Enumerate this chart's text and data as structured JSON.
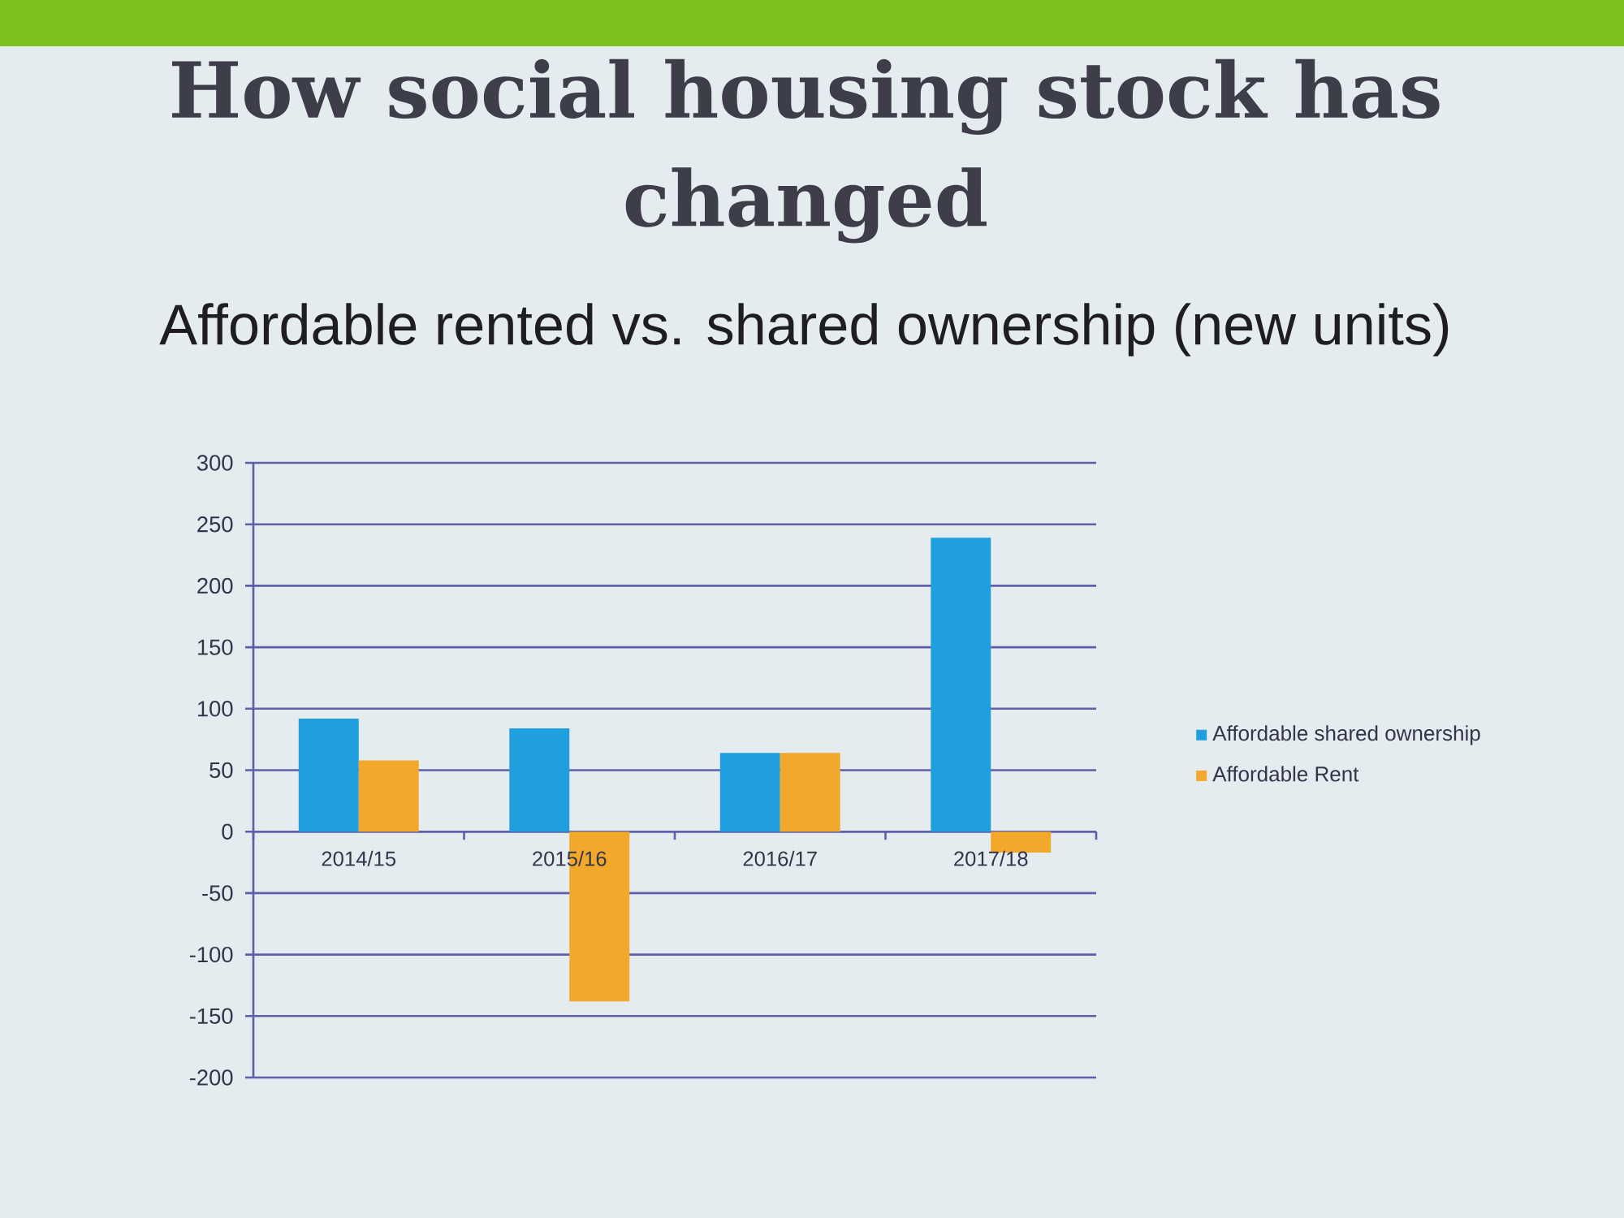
{
  "chart_data": {
    "type": "bar",
    "title": "How social housing stock has changed",
    "subtitle": "Affordable rented vs. shared ownership (new units)",
    "categories": [
      "2014/15",
      "2015/16",
      "2016/17",
      "2017/18"
    ],
    "series": [
      {
        "name": "Affordable shared ownership",
        "color": "#1f9fdd",
        "values": [
          92,
          84,
          64,
          239
        ]
      },
      {
        "name": "Affordable Rent",
        "color": "#f1a82b",
        "values": [
          58,
          -138,
          64,
          -17
        ]
      }
    ],
    "ylim": [
      -200,
      300
    ],
    "yticks": [
      -200,
      -150,
      -100,
      -50,
      0,
      50,
      100,
      150,
      200,
      250,
      300
    ],
    "grid": "y",
    "legend": "right"
  }
}
